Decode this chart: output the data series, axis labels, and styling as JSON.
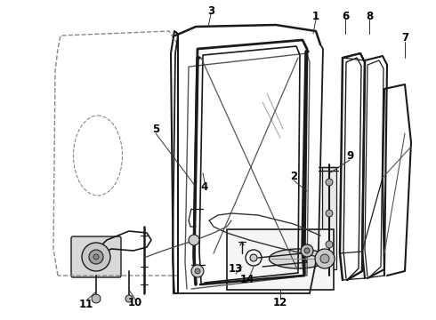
{
  "bg_color": "#ffffff",
  "line_color": "#1a1a1a",
  "label_color": "#000000",
  "fig_width": 4.9,
  "fig_height": 3.6,
  "dpi": 100,
  "font_size": 8.5
}
